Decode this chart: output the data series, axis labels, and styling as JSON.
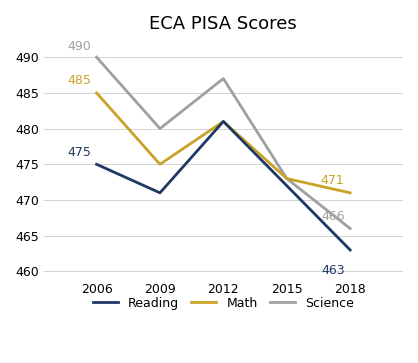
{
  "title": "ECA PISA Scores",
  "years": [
    2006,
    2009,
    2012,
    2015,
    2018
  ],
  "reading": [
    475,
    471,
    481,
    472,
    463
  ],
  "math": [
    485,
    475,
    481,
    473,
    471
  ],
  "science": [
    490,
    480,
    487,
    473,
    466
  ],
  "reading_color": "#1F3864",
  "math_color": "#C9A227",
  "science_color": "#A0A0A0",
  "ylim": [
    459,
    492
  ],
  "yticks": [
    460,
    465,
    470,
    475,
    480,
    485,
    490
  ],
  "background_color": "#FFFFFF",
  "title_fontsize": 13,
  "label_fontsize": 9,
  "tick_fontsize": 9,
  "legend_fontsize": 9,
  "linewidth": 2.0
}
